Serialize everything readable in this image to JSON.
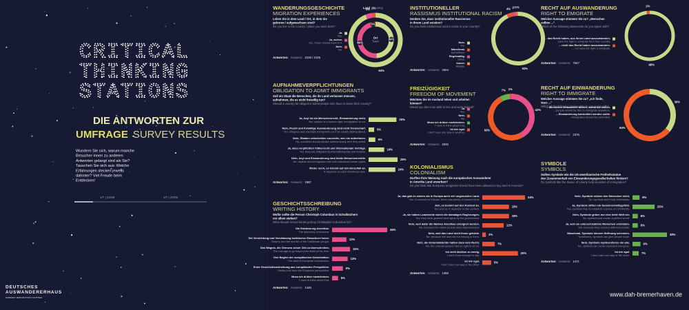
{
  "intro": {
    "logo": [
      "CRITICAL",
      "THINKING",
      "STATIONS"
    ],
    "heading": "DIE ANTWORTEN ZUR",
    "heading_de": "UMFRAGE",
    "heading_en": "SURVEY RESULTS",
    "text": [
      "Wundern Sie sich, warum manche",
      "Besucher·innen zu anderen",
      "Antworten gelangt sind als Sie?",
      "Tauschen Sie sich aus: Welche",
      "Erfahrungen stecken jeweils",
      "dahinter? Viel Freude beim",
      "Entdecken!"
    ],
    "progress": [
      "1/7 | 22/09",
      "2/7 | 22/03"
    ],
    "org": [
      "DEUTSCHES",
      "AUSWANDERERHAUS",
      "GERMAN EMIGRATION CENTER"
    ],
    "url": "www.dah-bremerhaven.de"
  },
  "chart_data": [
    {
      "type": "donut",
      "title": "WANDERUNGSGESCHICHTE",
      "subtitle": "MIGRATION EXPERIENCES",
      "question": [
        "Leben Sie in dem Land / Ort, in dem Sie",
        "geboren / aufgewachsen sind?",
        "Do you live in the country / place you were born?"
      ],
      "categories": [
        "Ja.",
        "Ja, vorher.",
        "Nein."
      ],
      "categories_en": [
        "Yes.",
        "Yes, I have moved back to it.",
        "No."
      ],
      "colors": [
        "#c8d98a",
        "#e8508a",
        "#e8533a"
      ],
      "series": [
        {
          "name": "Land",
          "name_en": "Country",
          "values": [
            94,
            4,
            2
          ],
          "value_labels": [
            "94%",
            "4%",
            "2%"
          ]
        },
        {
          "name": "Ort",
          "name_en": "Town",
          "values": [
            49,
            46,
            5
          ],
          "value_labels": [
            "49%",
            "46%",
            "5%"
          ]
        }
      ],
      "answers_label": "Antworten:",
      "answers_en": "Answers:",
      "answers": "2235 / 2105"
    },
    {
      "type": "bar",
      "title": "AUFNAHMEVERPFLICHTUNGEN",
      "subtitle": "OBLIGATION TO ADMIT IMMIGRANTS",
      "question": [
        "Soll ein Staat die Menschen, die ihr Land verlassen müssen,",
        "aufnehmen, die es nicht freiwillig tun?",
        "Should a country be obliged to admit people who have to leave their country?"
      ],
      "categories": [
        "Ja, Asyl ist ein Menschenrecht, Einwanderung nicht.",
        "Nein, Flucht und freiwillige Auswanderung sind nicht trennscharf.",
        "Nein, Staaten entscheiden souverän, wen sie aufnehmen.",
        "Ja, dazu verpflichten Völkerrecht und internationale Verträge.",
        "Nein, Asyl und Einwanderung sind beide Menschenrechte.",
        "Weder noch, es kommt auf den Einzelfall an."
      ],
      "categories_en": [
        "Yes, asylum is a human right, immigration is not.",
        "No, refugees and voluntary immigrants can't be clearly distinguished.",
        "No, countries should decide autonomously who they admit.",
        "Yes, they are obligated by international law and treaties.",
        "No, asylum and immigration are both individual human rights.",
        "It depends on each individual case."
      ],
      "values": [
        25,
        5,
        6,
        14,
        26,
        24
      ],
      "value_labels": [
        "25%",
        "5%",
        "6%",
        "14%",
        "26%",
        "24%"
      ],
      "color": "#c8d98a",
      "answers_label": "Antworten:",
      "answers_en": "Answers:",
      "answers": "1967"
    },
    {
      "type": "bar",
      "title": "GESCHICHTSSCHREIBUNG",
      "subtitle": "WRITING HISTORY",
      "question": [
        "Wofür sollte die Person Christoph Columbus in Schulbüchern",
        "vor allem stehen?",
        "What should school books portray Christopher Columbus for?"
      ],
      "categories": [
        "Die Entdeckung Amerikas.",
        "Die Vernichtung und Versklavung karibischer Einwohner·innen.",
        "Das Wagnis, die Grenzen seiner Zeit zu überschreiten.",
        "Den Beginn der europäischen Kolonisation.",
        "Erste Geschichtsschreibung aus europäischer Perspektive.",
        "Muss ich drüber nachdenken."
      ],
      "categories_en": [
        "The discovery of America.",
        "Slavery and the murder of the Caribbean people.",
        "The courage to go beyond the limits of his time.",
        "The start of European colonisation.",
        "History told from the European perspective.",
        "I have to think about that."
      ],
      "values": [
        46,
        12,
        15,
        13,
        9,
        5
      ],
      "value_labels": [
        "46%",
        "12%",
        "15%",
        "13%",
        "9%",
        "5%"
      ],
      "color": "#e8508a",
      "answers_label": "Antworten:",
      "answers_en": "Answers:",
      "answers": "1446"
    },
    {
      "type": "donut",
      "title": "INSTITUTIONELLER",
      "subtitle": "RASSISMUS INSTITUTIONAL RACISM",
      "question": [
        "Denken Sie, dass institutioneller Rassismus",
        "in Ihrem Land existiert?",
        "Do you think institutional racism exists in your country?"
      ],
      "categories": [
        "Nein.",
        "Manchmal.",
        "Regelmäßig.",
        "Immer."
      ],
      "categories_en": [
        "No.",
        "Sometimes.",
        "Often.",
        "Always."
      ],
      "colors": [
        "#c8d98a",
        "#e8533a",
        "#e8508a",
        "#f08a3a"
      ],
      "values": [
        93,
        4,
        2,
        1
      ],
      "value_labels": [
        "93%",
        "4%",
        "2%",
        "1%"
      ],
      "answers_label": "Antworten:",
      "answers_en": "Answers:",
      "answers": "2504"
    },
    {
      "type": "donut",
      "title": "FREIZÜGIGKEIT",
      "subtitle": "FREEDOM OF MOVEMENT",
      "question": [
        "Möchten Sie im Ausland leben und arbeiten",
        "können?",
        "Would you like to be able to live and work abroad?"
      ],
      "categories": [
        "Ja.",
        "Nein.",
        "Muss ich drüber nachdenken.",
        "Ist mir egal."
      ],
      "categories_en": [
        "Yes.",
        "No.",
        "I have to think about that.",
        "I don't care one way or another."
      ],
      "colors": [
        "#e8508a",
        "#ee5a2a",
        "#6ab04c",
        "#e8533a"
      ],
      "values": [
        42,
        50,
        7,
        1
      ],
      "value_labels": [
        "42%",
        "50%",
        "7%",
        "1%"
      ],
      "answers_label": "Antworten:",
      "answers_en": "Answers:",
      "answers": "2945"
    },
    {
      "type": "bar",
      "title": "KOLONIALISMUS",
      "subtitle": "COLONIALISM",
      "question": [
        "Durften Ihrer Meinung nach die europäischen Auswanderer",
        "in Amerika Land erwerben?",
        "Do you think that European emigrants should have been allowed to buy land in America?"
      ],
      "categories": [
        "Ja, das gab es anders als in Europa auch viel ungenutztes Land.",
        "Jein, es kommt auf den Kontext an.",
        "Ja, sie hatten Landrechte durch die damaligen Regierungen.",
        "Nein, weil dafür die Natives Amerikas enteignet wurden.",
        "Nein, weil das Land nicht ihnen gehörte.",
        "Nein, die Kolonialmächte hatten dazu kein Recht.",
        "Ich weiß darüber zu wenig.",
        "Ist mir egal."
      ],
      "categories_en": [
        "Yes, in contrast to Europe, there was plenty of unused land.",
        "Yes and no, it depends on the context.",
        "Yes, they were granted land rights by the government.",
        "No, because the native people were dispossessed.",
        "No, because the land did not belong to them.",
        "No, the colonial powers had no right to do so.",
        "I don't know enough to say.",
        "I don't care one way or the other."
      ],
      "values": [
        24,
        15,
        15,
        12,
        2,
        7,
        20,
        5
      ],
      "value_labels": [
        "24%",
        "15%",
        "15%",
        "12%",
        "2%",
        "7%",
        "20%",
        "5%"
      ],
      "color": "#e8533a",
      "answers_label": "Antworten:",
      "answers_en": "Answers:",
      "answers": "1356"
    },
    {
      "type": "donut",
      "title": "RECHT AUF AUSWANDERUNG",
      "subtitle": "RIGHT TO EMIGRATE",
      "question": [
        "Welcher Aussage stimmen Sie zu? „Menschen",
        "sollten ...\"",
        "Which of the following statements do you agree with?"
      ],
      "categories": [
        "... das Recht haben, aus ihrem Land auszuwandern.",
        "... nicht das Recht haben auszuwandern."
      ],
      "categories_en": [
        "... have the right to emigrate from their country.",
        "... not have the right to emigrate."
      ],
      "colors": [
        "#c8d98a",
        "#e8533a"
      ],
      "values": [
        98,
        2
      ],
      "value_labels": [
        "98%",
        "2%"
      ],
      "answers_label": "Antworten:",
      "answers_en": "Answers:",
      "answers": "7947"
    },
    {
      "type": "donut",
      "title": "RECHT AUF EINWANDERUNG",
      "subtitle": "RIGHT TO IMMIGRATE",
      "question": [
        "Welcher Aussage stimmen Sie zu? „Ich finde,",
        "dass ...\"",
        "Which of the following statements do you agree with?"
      ],
      "categories": [
        "... Menschen einwandern dürfen, wohin sie wollen.",
        "... Einwanderung kontrolliert werden sollte."
      ],
      "categories_en": [
        "... people should be free to immigrate anywhere.",
        "... immigration should be controlled."
      ],
      "colors": [
        "#c8d98a",
        "#ee5a2a"
      ],
      "values": [
        36,
        64
      ],
      "value_labels": [
        "36%",
        "64%"
      ],
      "answers_label": "Antworten:",
      "answers_en": "Answers:",
      "answers": "2376"
    },
    {
      "type": "bar",
      "title": "SYMBOLE",
      "subtitle": "SYMBOLS",
      "question": [
        "Sollten Symbole wie die US-amerikanische Freiheitsstatue",
        "den Zusammenhalt von Einwanderungsgesellschaften fördern?",
        "Do symbols like the Statue of Liberty help societies of immigration?"
      ],
      "categories": [
        "Nein, Symbole nützen den Menschen nicht.",
        "Ja, Symbole stiften ein Gemeinschaftsgefühl.",
        "Nein, Symbole geben nur eine heile Welt vor.",
        "Ja, weil sie unterschiedliche Menschen verbinden.",
        "Manchmal, Symbole können Hoffnung schenken.",
        "Nein, Symbole repräsentieren nie alle.",
        "Ist mir egal."
      ],
      "categories_en": [
        "No, symbols don't help individuals.",
        "Yes, symbols help to establish a sense of community.",
        "No, symbols just create a perfect world.",
        "Yes, because they connect different people.",
        "Sometimes, symbols can give people hope.",
        "No, symbols can never represent everyone.",
        "I don't care one way or the other."
      ],
      "values": [
        8,
        25,
        6,
        6,
        39,
        9,
        7
      ],
      "value_labels": [
        "8%",
        "25%",
        "6%",
        "6%",
        "39%",
        "9%",
        "7%"
      ],
      "color": "#6ab04c",
      "answers_label": "Antworten:",
      "answers_en": "Answers:",
      "answers": "1471"
    }
  ]
}
